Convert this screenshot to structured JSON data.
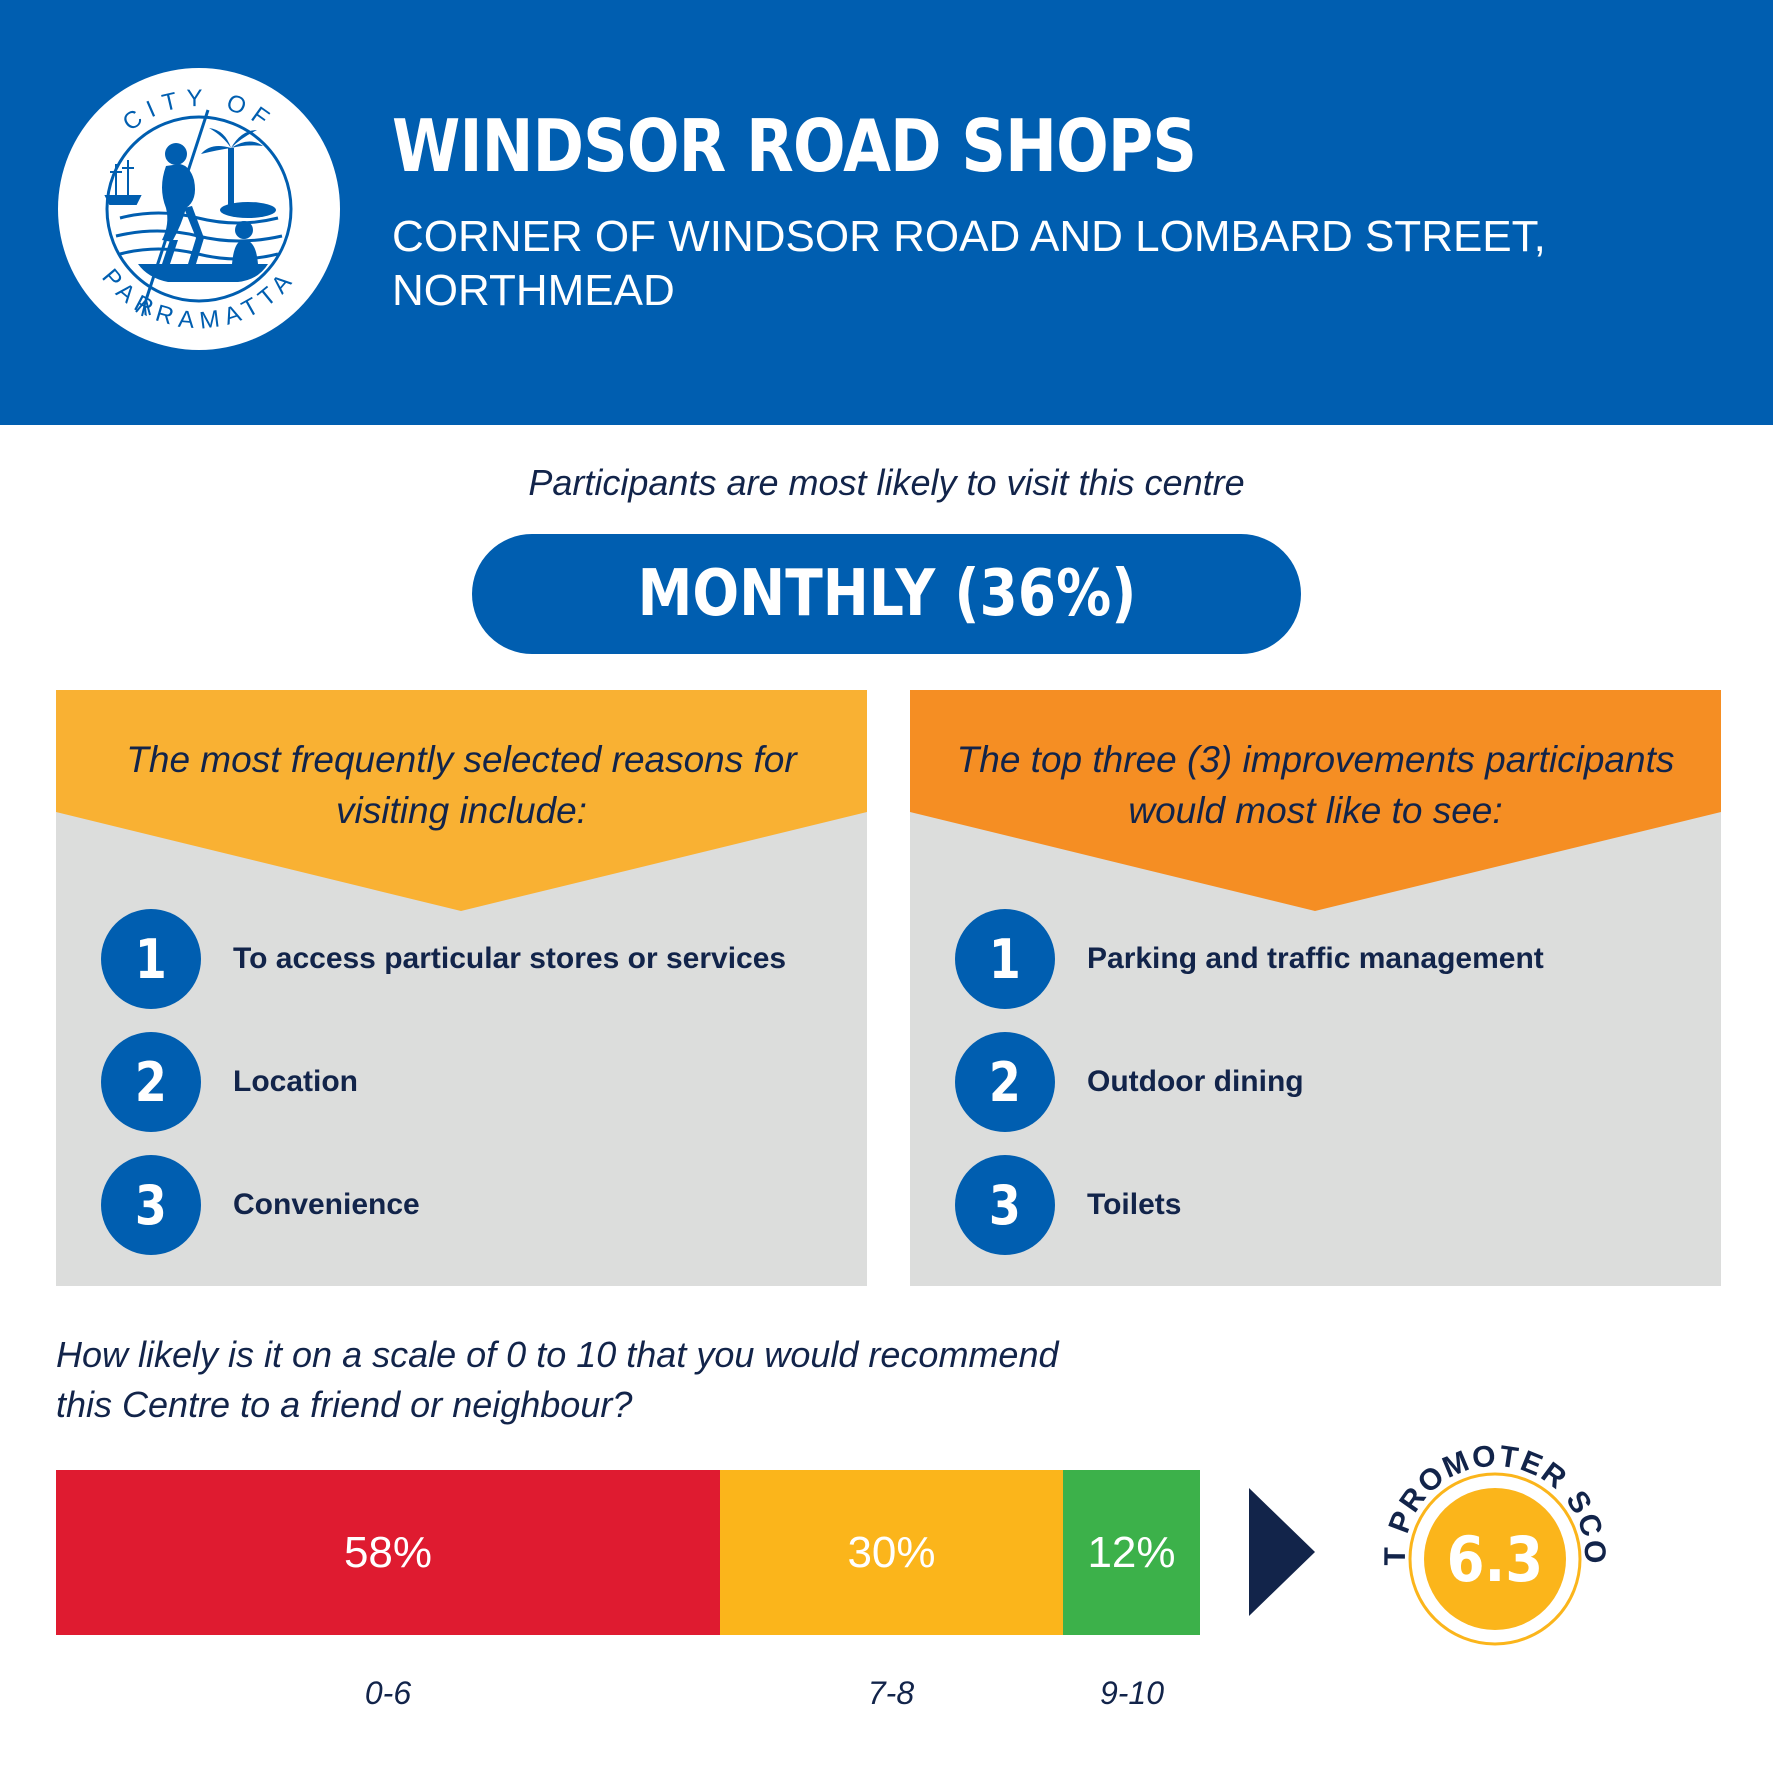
{
  "header": {
    "logo_text_top": "CITY OF",
    "logo_text_bottom": "PARRAMATTA",
    "title": "WINDSOR ROAD SHOPS",
    "subtitle_line1": "CORNER OF WINDSOR ROAD AND LOMBARD STREET,",
    "subtitle_line2": "NORTHMEAD"
  },
  "visit": {
    "label": "Participants are most likely to visit this centre",
    "value": "MONTHLY (36%)"
  },
  "reasons": {
    "heading_line1": "The most frequently selected reasons for",
    "heading_line2": "visiting include:",
    "color": "#f9b133",
    "items": [
      {
        "num": "1",
        "label": "To access particular stores or services"
      },
      {
        "num": "2",
        "label": "Location"
      },
      {
        "num": "3",
        "label": "Convenience"
      }
    ]
  },
  "improvements": {
    "heading_line1": "The top three (3) improvements participants",
    "heading_line2": "would most like to see:",
    "color": "#f58e23",
    "items": [
      {
        "num": "1",
        "label": "Parking and traffic management"
      },
      {
        "num": "2",
        "label": "Outdoor dining"
      },
      {
        "num": "3",
        "label": "Toilets"
      }
    ]
  },
  "recommend": {
    "question_line1": "How likely is it on a scale of 0 to 10 that you would recommend",
    "question_line2": "this Centre to a friend or neighbour?",
    "segments": [
      {
        "range": "0-6",
        "percent": "58%",
        "value": 58,
        "color": "#df1b30"
      },
      {
        "range": "7-8",
        "percent": "30%",
        "value": 30,
        "color": "#fbb51b"
      },
      {
        "range": "9-10",
        "percent": "12%",
        "value": 12,
        "color": "#3cb14a"
      }
    ]
  },
  "nps": {
    "label": "NET PROMOTER SCORE",
    "value": "6.3"
  },
  "colors": {
    "brand_blue": "#005eb0",
    "navy": "#12244a",
    "panel_grey": "#dcdddc"
  }
}
